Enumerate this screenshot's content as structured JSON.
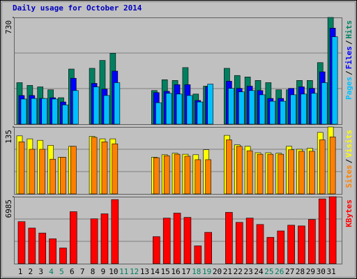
{
  "chart_data": [
    {
      "type": "bar",
      "title": "Daily usage for October 2014",
      "legend_separator": "/",
      "ylim": [
        0,
        730
      ],
      "yticks": [
        730
      ],
      "grid": true,
      "series": [
        {
          "name": "Hits",
          "color": "#008060",
          "values": [
            284,
            265,
            255,
            235,
            181,
            377,
            null,
            382,
            436,
            485,
            null,
            null,
            null,
            230,
            304,
            299,
            387,
            206,
            260,
            null,
            382,
            333,
            323,
            299,
            284,
            235,
            235,
            299,
            299,
            421,
            730
          ]
        },
        {
          "name": "Files",
          "color": "#0000ff",
          "values": [
            196,
            196,
            176,
            181,
            152,
            314,
            null,
            279,
            240,
            363,
            null,
            null,
            null,
            216,
            225,
            270,
            270,
            162,
            255,
            null,
            294,
            245,
            260,
            230,
            176,
            176,
            245,
            255,
            245,
            358,
            657
          ]
        },
        {
          "name": "Pages",
          "color": "#00c0ff",
          "values": [
            172,
            176,
            176,
            172,
            132,
            230,
            null,
            255,
            196,
            284,
            null,
            null,
            null,
            147,
            211,
            206,
            196,
            152,
            274,
            null,
            245,
            221,
            230,
            201,
            157,
            157,
            201,
            206,
            211,
            284,
            598
          ]
        }
      ]
    },
    {
      "type": "bar",
      "ylim": [
        0,
        135
      ],
      "yticks": [
        135
      ],
      "grid": true,
      "series": [
        {
          "name": "Visits",
          "color": "#ffff00",
          "values": [
            117,
            111,
            108,
            98,
            74,
            96,
            null,
            116,
            111,
            111,
            null,
            null,
            null,
            74,
            79,
            82,
            80,
            79,
            89,
            null,
            118,
            99,
            96,
            83,
            83,
            82,
            96,
            90,
            92,
            124,
            135
          ]
        },
        {
          "name": "Sites",
          "color": "#ff8000",
          "values": [
            105,
            90,
            90,
            70,
            74,
            96,
            null,
            114,
            105,
            101,
            null,
            null,
            null,
            73,
            77,
            80,
            76,
            69,
            69,
            null,
            109,
            96,
            87,
            80,
            80,
            80,
            89,
            86,
            86,
            109,
            115
          ]
        }
      ]
    },
    {
      "type": "bar",
      "ylim": [
        0,
        6985
      ],
      "yticks": [
        6985
      ],
      "grid": true,
      "categories": [
        "1",
        "2",
        "3",
        "4",
        "5",
        "6",
        "7",
        "8",
        "9",
        "10",
        "11",
        "12",
        "13",
        "14",
        "15",
        "16",
        "17",
        "18",
        "19",
        "20",
        "21",
        "22",
        "23",
        "24",
        "25",
        "26",
        "27",
        "28",
        "29",
        "30",
        "31"
      ],
      "label_colors": [
        "#000000",
        "#000000",
        "#000000",
        "#008060",
        "#008060",
        "#000000",
        "#000000",
        "#000000",
        "#000000",
        "#000000",
        "#008060",
        "#008060",
        "#000000",
        "#000000",
        "#000000",
        "#000000",
        "#000000",
        "#008060",
        "#008060",
        "#000000",
        "#000000",
        "#000000",
        "#000000",
        "#000000",
        "#008060",
        "#008060",
        "#000000",
        "#000000",
        "#000000",
        "#000000",
        "#000000"
      ],
      "series": [
        {
          "name": "KBytes",
          "color": "#ff0000",
          "values": [
            4384,
            3715,
            3195,
            2600,
            1635,
            5424,
            null,
            4681,
            5201,
            6687,
            null,
            null,
            null,
            2823,
            4755,
            5275,
            4830,
            1858,
            3269,
            null,
            5350,
            4309,
            4755,
            4087,
            2749,
            3418,
            4012,
            3938,
            4607,
            6761,
            6985
          ]
        }
      ]
    }
  ]
}
